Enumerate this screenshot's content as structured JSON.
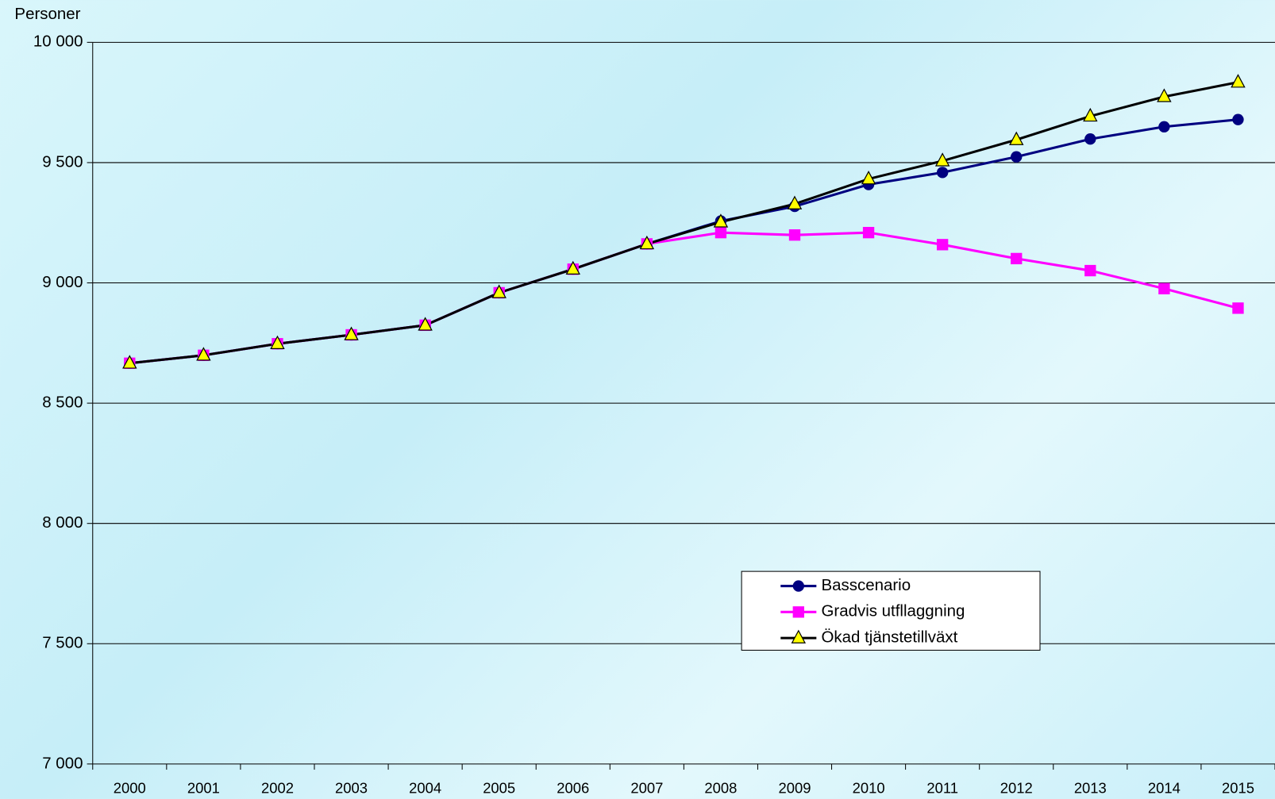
{
  "chart_data": {
    "type": "line",
    "y_label": "Personer",
    "categories": [
      "2000",
      "2001",
      "2002",
      "2003",
      "2004",
      "2005",
      "2006",
      "2007",
      "2008",
      "2009",
      "2010",
      "2011",
      "2012",
      "2013",
      "2014",
      "2015"
    ],
    "series": [
      {
        "name": "Basscenario",
        "color": "#000080",
        "marker": "circle",
        "values": [
          8666,
          8699,
          8747,
          8784,
          8824,
          8959,
          9057,
          9162,
          9257,
          9318,
          9409,
          9459,
          9524,
          9598,
          9649,
          9679
        ]
      },
      {
        "name": "Gradvis utfllaggning",
        "color": "#ff00ff",
        "marker": "square",
        "values": [
          8666,
          8699,
          8747,
          8784,
          8824,
          8959,
          9057,
          9162,
          9209,
          9199,
          9209,
          9159,
          9101,
          9051,
          8976,
          8895
        ]
      },
      {
        "name": "Ökad tjänstetillväxt",
        "color": "#000000",
        "marker": "triangle",
        "marker_fill": "#ffff00",
        "values": [
          8666,
          8699,
          8747,
          8784,
          8824,
          8959,
          9057,
          9162,
          9253,
          9328,
          9432,
          9507,
          9595,
          9693,
          9774,
          9834
        ]
      }
    ],
    "ylim": [
      7000,
      10000
    ],
    "yticks": [
      {
        "value": 7000,
        "label": "7 000"
      },
      {
        "value": 7500,
        "label": "7 500"
      },
      {
        "value": 8000,
        "label": "8 000"
      },
      {
        "value": 8500,
        "label": "8 500"
      },
      {
        "value": 9000,
        "label": "9 000"
      },
      {
        "value": 9500,
        "label": "9 500"
      },
      {
        "value": 10000,
        "label": "10 000"
      }
    ],
    "grid": true,
    "legend": "center-right"
  }
}
